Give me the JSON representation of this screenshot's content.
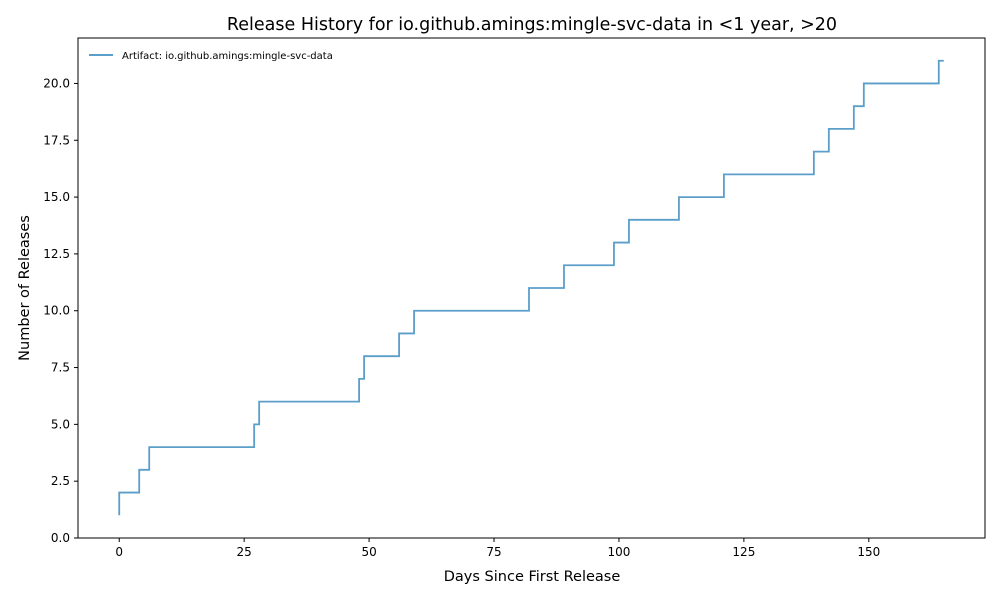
{
  "chart_data": {
    "type": "line",
    "drawstyle": "steps-post",
    "title": "Release History for io.github.amings:mingle-svc-data in <1 year, >20",
    "xlabel": "Days Since First Release",
    "ylabel": "Number of Releases",
    "xlim": [
      -8.25,
      173.25
    ],
    "ylim": [
      0,
      22
    ],
    "xticks": [
      0,
      25,
      50,
      75,
      100,
      125,
      150
    ],
    "xtick_labels": [
      "0",
      "25",
      "50",
      "75",
      "100",
      "125",
      "150"
    ],
    "yticks": [
      0,
      2.5,
      5,
      7.5,
      10,
      12.5,
      15,
      17.5,
      20
    ],
    "ytick_labels": [
      "0.0",
      "2.5",
      "5.0",
      "7.5",
      "10.0",
      "12.5",
      "15.0",
      "17.5",
      "20.0"
    ],
    "grid": false,
    "legend_position": "top-left",
    "series": [
      {
        "name": "Artifact: io.github.amings:mingle-svc-data",
        "color": "#5b9ec9",
        "x": [
          0,
          0,
          4,
          6,
          27,
          28,
          48,
          49,
          56,
          59,
          82,
          89,
          99,
          102,
          112,
          121,
          139,
          142,
          147,
          149,
          164,
          165
        ],
        "y": [
          1,
          2,
          3,
          4,
          5,
          6,
          7,
          8,
          9,
          10,
          11,
          12,
          13,
          14,
          15,
          16,
          17,
          18,
          19,
          20,
          21,
          21
        ]
      }
    ]
  }
}
